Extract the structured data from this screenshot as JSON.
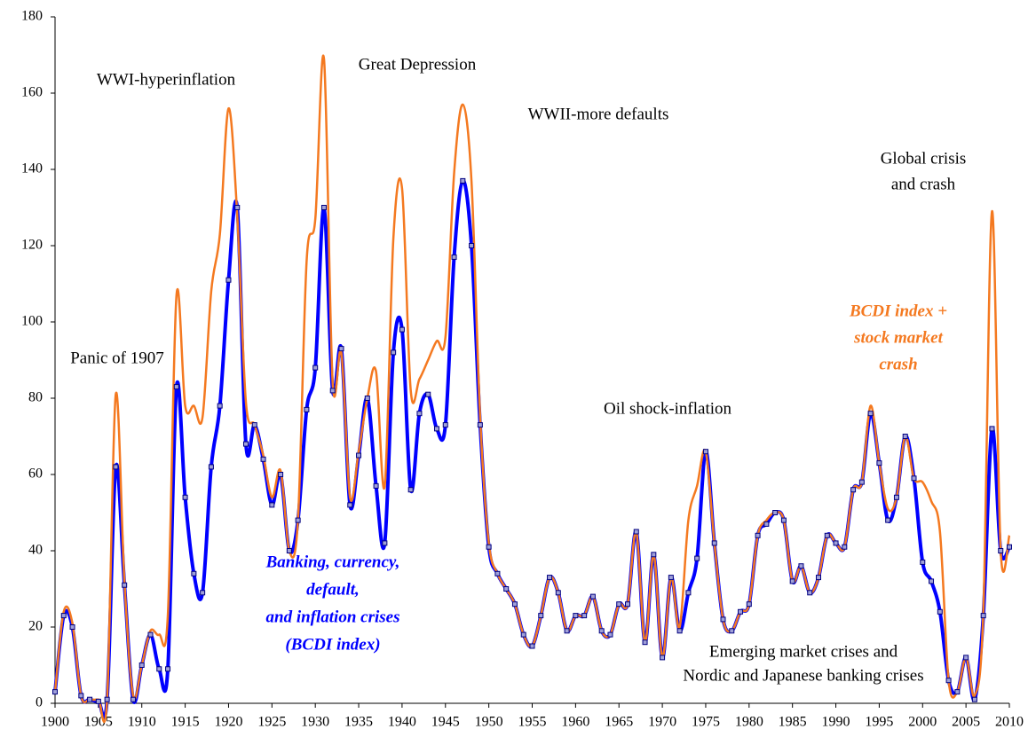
{
  "chart_data": {
    "type": "line",
    "x": [
      1900,
      1901,
      1902,
      1903,
      1904,
      1905,
      1906,
      1907,
      1908,
      1909,
      1910,
      1911,
      1912,
      1913,
      1914,
      1915,
      1916,
      1917,
      1918,
      1919,
      1920,
      1921,
      1922,
      1923,
      1924,
      1925,
      1926,
      1927,
      1928,
      1929,
      1930,
      1931,
      1932,
      1933,
      1934,
      1935,
      1936,
      1937,
      1938,
      1939,
      1940,
      1941,
      1942,
      1943,
      1944,
      1945,
      1946,
      1947,
      1948,
      1949,
      1950,
      1951,
      1952,
      1953,
      1954,
      1955,
      1956,
      1957,
      1958,
      1959,
      1960,
      1961,
      1962,
      1963,
      1964,
      1965,
      1966,
      1967,
      1968,
      1969,
      1970,
      1971,
      1972,
      1973,
      1974,
      1975,
      1976,
      1977,
      1978,
      1979,
      1980,
      1981,
      1982,
      1983,
      1984,
      1985,
      1986,
      1987,
      1988,
      1989,
      1990,
      1991,
      1992,
      1993,
      1994,
      1995,
      1996,
      1997,
      1998,
      1999,
      2000,
      2001,
      2002,
      2003,
      2004,
      2005,
      2006,
      2007,
      2008,
      2009,
      2010
    ],
    "series": [
      {
        "name": [
          "Banking, currency,",
          "default,",
          "and inflation crises",
          "(BCDI index)"
        ],
        "color": "#0000ff",
        "markers": true,
        "values": [
          3,
          23,
          20,
          2,
          1,
          0.5,
          1,
          62,
          31,
          1,
          10,
          18,
          9,
          9,
          83,
          54,
          34,
          29,
          62,
          78,
          111,
          130,
          68,
          73,
          64,
          52,
          60,
          40,
          48,
          77,
          88,
          130,
          82,
          93,
          52,
          65,
          80,
          57,
          42,
          92,
          98,
          56,
          76,
          81,
          72,
          73,
          117,
          137,
          120,
          73,
          41,
          34,
          30,
          26,
          18,
          15,
          23,
          33,
          29,
          19,
          23,
          23,
          28,
          19,
          18,
          26,
          26,
          45,
          16,
          39,
          12,
          33,
          19,
          29,
          38,
          66,
          42,
          22,
          19,
          24,
          26,
          44,
          47,
          50,
          48,
          32,
          36,
          29,
          33,
          44,
          42,
          41,
          56,
          58,
          76,
          63,
          48,
          54,
          70,
          59,
          37,
          32,
          24,
          6,
          3,
          12,
          1,
          23,
          72,
          40,
          41
        ]
      },
      {
        "name": [
          "BCDI index +",
          "stock market",
          "crash"
        ],
        "color": "#f47920",
        "markers": false,
        "values": [
          3,
          24,
          21,
          2,
          1,
          1,
          1,
          81,
          32,
          2,
          10,
          19,
          18,
          23,
          107,
          78,
          78,
          75,
          108,
          123,
          156,
          128,
          79,
          73,
          65,
          54,
          61,
          40,
          48,
          116,
          127,
          169,
          84,
          92,
          54,
          66,
          80,
          87,
          57,
          122,
          135,
          82,
          85,
          90,
          95,
          96,
          139,
          157,
          137,
          75,
          42,
          34,
          30,
          26,
          18,
          15,
          23,
          33,
          29,
          19,
          23,
          23,
          28,
          19,
          18,
          26,
          26,
          45,
          16,
          39,
          12,
          33,
          20,
          48,
          57,
          66,
          42,
          22,
          19,
          24,
          26,
          44,
          48,
          50,
          48,
          32,
          36,
          29,
          33,
          44,
          42,
          41,
          56,
          58,
          78,
          63,
          51,
          54,
          70,
          59,
          58,
          53,
          45,
          6,
          3,
          12,
          2,
          24,
          129,
          40,
          44
        ]
      }
    ],
    "annotations": [
      {
        "lines": [
          "Panic of 1907"
        ]
      },
      {
        "lines": [
          "WWI-hyperinflation"
        ]
      },
      {
        "lines": [
          "Great Depression"
        ]
      },
      {
        "lines": [
          "WWII-more defaults"
        ]
      },
      {
        "lines": [
          "Oil shock-inflation"
        ]
      },
      {
        "lines": [
          "Global crisis",
          "and crash"
        ]
      },
      {
        "lines": [
          "Emerging market crises and",
          "Nordic and Japanese banking crises"
        ]
      }
    ],
    "xlim": [
      1900,
      2010
    ],
    "xticks": [
      1900,
      1905,
      1910,
      1915,
      1920,
      1925,
      1930,
      1935,
      1940,
      1945,
      1950,
      1955,
      1960,
      1965,
      1970,
      1975,
      1980,
      1985,
      1990,
      1995,
      2000,
      2005,
      2010
    ],
    "ylim": [
      0,
      180
    ],
    "yticks": [
      0,
      20,
      40,
      60,
      80,
      100,
      120,
      140,
      160,
      180
    ],
    "grid": false
  }
}
